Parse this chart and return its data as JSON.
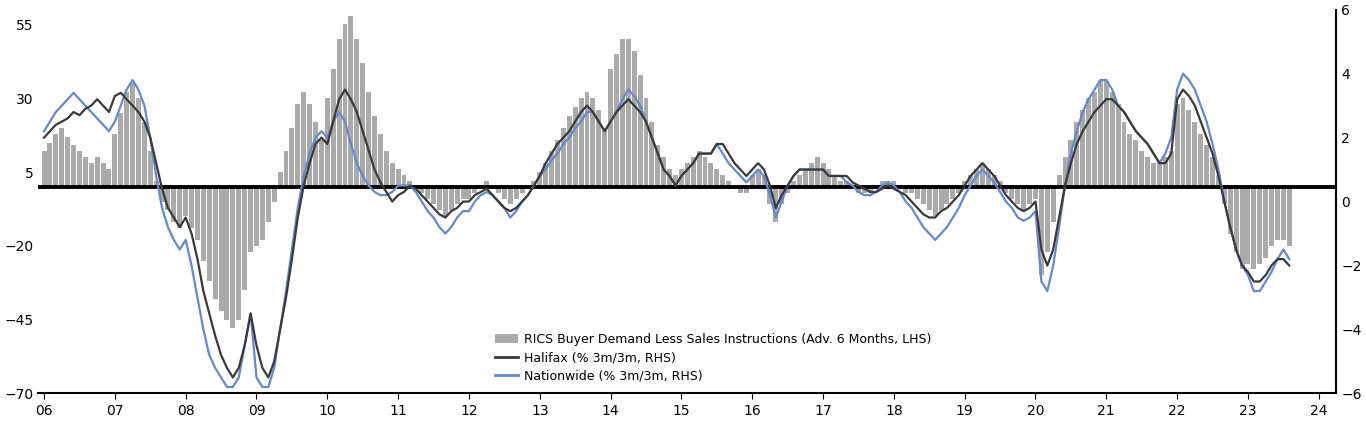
{
  "xlim": [
    2005.917,
    2024.25
  ],
  "lhs_ylim": [
    -70,
    60
  ],
  "rhs_ylim": [
    -6,
    6
  ],
  "lhs_yticks": [
    -70,
    -45,
    -20,
    5,
    30,
    55
  ],
  "rhs_yticks": [
    -6,
    -4,
    -2,
    0,
    2,
    4,
    6
  ],
  "xticks": [
    6,
    7,
    8,
    9,
    10,
    11,
    12,
    13,
    14,
    15,
    16,
    17,
    18,
    19,
    20,
    21,
    22,
    23,
    24
  ],
  "bar_color": "#aaaaaa",
  "halifax_color": "#3a3a3a",
  "nationwide_color": "#6688cc",
  "legend_labels": [
    "RICS Buyer Demand Less Sales Instructions (Adv. 6 Months, LHS)",
    "Halifax (% 3m/3m, RHS)",
    "Nationwide (% 3m/3m, RHS)"
  ],
  "rics_dates": [
    2006.0,
    2006.083,
    2006.167,
    2006.25,
    2006.333,
    2006.417,
    2006.5,
    2006.583,
    2006.667,
    2006.75,
    2006.833,
    2006.917,
    2007.0,
    2007.083,
    2007.167,
    2007.25,
    2007.333,
    2007.417,
    2007.5,
    2007.583,
    2007.667,
    2007.75,
    2007.833,
    2007.917,
    2008.0,
    2008.083,
    2008.167,
    2008.25,
    2008.333,
    2008.417,
    2008.5,
    2008.583,
    2008.667,
    2008.75,
    2008.833,
    2008.917,
    2009.0,
    2009.083,
    2009.167,
    2009.25,
    2009.333,
    2009.417,
    2009.5,
    2009.583,
    2009.667,
    2009.75,
    2009.833,
    2009.917,
    2010.0,
    2010.083,
    2010.167,
    2010.25,
    2010.333,
    2010.417,
    2010.5,
    2010.583,
    2010.667,
    2010.75,
    2010.833,
    2010.917,
    2011.0,
    2011.083,
    2011.167,
    2011.25,
    2011.333,
    2011.417,
    2011.5,
    2011.583,
    2011.667,
    2011.75,
    2011.833,
    2011.917,
    2012.0,
    2012.083,
    2012.167,
    2012.25,
    2012.333,
    2012.417,
    2012.5,
    2012.583,
    2012.667,
    2012.75,
    2012.833,
    2012.917,
    2013.0,
    2013.083,
    2013.167,
    2013.25,
    2013.333,
    2013.417,
    2013.5,
    2013.583,
    2013.667,
    2013.75,
    2013.833,
    2013.917,
    2014.0,
    2014.083,
    2014.167,
    2014.25,
    2014.333,
    2014.417,
    2014.5,
    2014.583,
    2014.667,
    2014.75,
    2014.833,
    2014.917,
    2015.0,
    2015.083,
    2015.167,
    2015.25,
    2015.333,
    2015.417,
    2015.5,
    2015.583,
    2015.667,
    2015.75,
    2015.833,
    2015.917,
    2016.0,
    2016.083,
    2016.167,
    2016.25,
    2016.333,
    2016.417,
    2016.5,
    2016.583,
    2016.667,
    2016.75,
    2016.833,
    2016.917,
    2017.0,
    2017.083,
    2017.167,
    2017.25,
    2017.333,
    2017.417,
    2017.5,
    2017.583,
    2017.667,
    2017.75,
    2017.833,
    2017.917,
    2018.0,
    2018.083,
    2018.167,
    2018.25,
    2018.333,
    2018.417,
    2018.5,
    2018.583,
    2018.667,
    2018.75,
    2018.833,
    2018.917,
    2019.0,
    2019.083,
    2019.167,
    2019.25,
    2019.333,
    2019.417,
    2019.5,
    2019.583,
    2019.667,
    2019.75,
    2019.833,
    2019.917,
    2020.0,
    2020.083,
    2020.167,
    2020.25,
    2020.333,
    2020.417,
    2020.5,
    2020.583,
    2020.667,
    2020.75,
    2020.833,
    2020.917,
    2021.0,
    2021.083,
    2021.167,
    2021.25,
    2021.333,
    2021.417,
    2021.5,
    2021.583,
    2021.667,
    2021.75,
    2021.833,
    2021.917,
    2022.0,
    2022.083,
    2022.167,
    2022.25,
    2022.333,
    2022.417,
    2022.5,
    2022.583,
    2022.667,
    2022.75,
    2022.833,
    2022.917,
    2023.0,
    2023.083,
    2023.167,
    2023.25,
    2023.333,
    2023.417,
    2023.5,
    2023.583
  ],
  "rics_vals": [
    12,
    15,
    18,
    20,
    17,
    14,
    12,
    10,
    8,
    10,
    8,
    6,
    18,
    25,
    32,
    35,
    30,
    22,
    12,
    2,
    -5,
    -8,
    -12,
    -14,
    -10,
    -14,
    -18,
    -25,
    -32,
    -38,
    -42,
    -45,
    -48,
    -45,
    -35,
    -22,
    -20,
    -18,
    -12,
    -5,
    5,
    12,
    20,
    28,
    32,
    28,
    22,
    16,
    30,
    40,
    50,
    55,
    58,
    50,
    42,
    32,
    24,
    18,
    12,
    8,
    6,
    4,
    2,
    0,
    -2,
    -4,
    -6,
    -8,
    -10,
    -8,
    -6,
    -4,
    -4,
    -2,
    0,
    2,
    0,
    -2,
    -4,
    -6,
    -4,
    -2,
    0,
    2,
    5,
    8,
    12,
    16,
    20,
    24,
    27,
    30,
    32,
    30,
    26,
    20,
    40,
    45,
    50,
    50,
    46,
    38,
    30,
    22,
    14,
    10,
    6,
    4,
    6,
    8,
    10,
    12,
    10,
    8,
    6,
    4,
    2,
    0,
    -2,
    -2,
    4,
    6,
    4,
    -6,
    -12,
    -6,
    -2,
    2,
    4,
    6,
    8,
    10,
    8,
    6,
    4,
    2,
    2,
    0,
    -2,
    -2,
    -2,
    0,
    2,
    2,
    2,
    0,
    -2,
    -2,
    -4,
    -6,
    -8,
    -10,
    -8,
    -6,
    -4,
    -2,
    2,
    4,
    6,
    8,
    6,
    4,
    2,
    -2,
    -4,
    -6,
    -8,
    -6,
    -4,
    -30,
    -22,
    -12,
    4,
    10,
    16,
    22,
    26,
    30,
    32,
    36,
    36,
    32,
    28,
    22,
    18,
    16,
    12,
    10,
    8,
    8,
    10,
    12,
    28,
    30,
    26,
    22,
    18,
    14,
    10,
    4,
    -6,
    -16,
    -22,
    -28,
    -26,
    -28,
    -26,
    -24,
    -20,
    -18,
    -18,
    -20
  ],
  "halifax_dates": [
    2006.0,
    2006.083,
    2006.167,
    2006.25,
    2006.333,
    2006.417,
    2006.5,
    2006.583,
    2006.667,
    2006.75,
    2006.833,
    2006.917,
    2007.0,
    2007.083,
    2007.167,
    2007.25,
    2007.333,
    2007.417,
    2007.5,
    2007.583,
    2007.667,
    2007.75,
    2007.833,
    2007.917,
    2008.0,
    2008.083,
    2008.167,
    2008.25,
    2008.333,
    2008.417,
    2008.5,
    2008.583,
    2008.667,
    2008.75,
    2008.833,
    2008.917,
    2009.0,
    2009.083,
    2009.167,
    2009.25,
    2009.333,
    2009.417,
    2009.5,
    2009.583,
    2009.667,
    2009.75,
    2009.833,
    2009.917,
    2010.0,
    2010.083,
    2010.167,
    2010.25,
    2010.333,
    2010.417,
    2010.5,
    2010.583,
    2010.667,
    2010.75,
    2010.833,
    2010.917,
    2011.0,
    2011.083,
    2011.167,
    2011.25,
    2011.333,
    2011.417,
    2011.5,
    2011.583,
    2011.667,
    2011.75,
    2011.833,
    2011.917,
    2012.0,
    2012.083,
    2012.167,
    2012.25,
    2012.333,
    2012.417,
    2012.5,
    2012.583,
    2012.667,
    2012.75,
    2012.833,
    2012.917,
    2013.0,
    2013.083,
    2013.167,
    2013.25,
    2013.333,
    2013.417,
    2013.5,
    2013.583,
    2013.667,
    2013.75,
    2013.833,
    2013.917,
    2014.0,
    2014.083,
    2014.167,
    2014.25,
    2014.333,
    2014.417,
    2014.5,
    2014.583,
    2014.667,
    2014.75,
    2014.833,
    2014.917,
    2015.0,
    2015.083,
    2015.167,
    2015.25,
    2015.333,
    2015.417,
    2015.5,
    2015.583,
    2015.667,
    2015.75,
    2015.833,
    2015.917,
    2016.0,
    2016.083,
    2016.167,
    2016.25,
    2016.333,
    2016.417,
    2016.5,
    2016.583,
    2016.667,
    2016.75,
    2016.833,
    2016.917,
    2017.0,
    2017.083,
    2017.167,
    2017.25,
    2017.333,
    2017.417,
    2017.5,
    2017.583,
    2017.667,
    2017.75,
    2017.833,
    2017.917,
    2018.0,
    2018.083,
    2018.167,
    2018.25,
    2018.333,
    2018.417,
    2018.5,
    2018.583,
    2018.667,
    2018.75,
    2018.833,
    2018.917,
    2019.0,
    2019.083,
    2019.167,
    2019.25,
    2019.333,
    2019.417,
    2019.5,
    2019.583,
    2019.667,
    2019.75,
    2019.833,
    2019.917,
    2020.0,
    2020.083,
    2020.167,
    2020.25,
    2020.333,
    2020.417,
    2020.5,
    2020.583,
    2020.667,
    2020.75,
    2020.833,
    2020.917,
    2021.0,
    2021.083,
    2021.167,
    2021.25,
    2021.333,
    2021.417,
    2021.5,
    2021.583,
    2021.667,
    2021.75,
    2021.833,
    2021.917,
    2022.0,
    2022.083,
    2022.167,
    2022.25,
    2022.333,
    2022.417,
    2022.5,
    2022.583,
    2022.667,
    2022.75,
    2022.833,
    2022.917,
    2023.0,
    2023.083,
    2023.167,
    2023.25,
    2023.333,
    2023.417,
    2023.5,
    2023.583
  ],
  "halifax_vals": [
    2.0,
    2.2,
    2.4,
    2.5,
    2.6,
    2.8,
    2.7,
    2.9,
    3.0,
    3.2,
    3.0,
    2.8,
    3.3,
    3.4,
    3.2,
    3.0,
    2.8,
    2.5,
    2.0,
    1.2,
    0.4,
    -0.2,
    -0.5,
    -0.8,
    -0.5,
    -1.0,
    -1.8,
    -2.8,
    -3.5,
    -4.2,
    -4.8,
    -5.2,
    -5.5,
    -5.2,
    -4.5,
    -3.5,
    -4.5,
    -5.2,
    -5.5,
    -5.0,
    -4.0,
    -3.0,
    -1.8,
    -0.5,
    0.5,
    1.2,
    1.8,
    2.0,
    1.8,
    2.5,
    3.2,
    3.5,
    3.2,
    2.8,
    2.2,
    1.6,
    1.0,
    0.6,
    0.3,
    0.0,
    0.2,
    0.3,
    0.5,
    0.4,
    0.2,
    0.0,
    -0.2,
    -0.4,
    -0.5,
    -0.3,
    -0.2,
    0.0,
    0.0,
    0.2,
    0.3,
    0.4,
    0.2,
    0.0,
    -0.2,
    -0.3,
    -0.2,
    0.0,
    0.2,
    0.5,
    0.8,
    1.2,
    1.5,
    1.8,
    2.0,
    2.2,
    2.5,
    2.8,
    3.0,
    2.8,
    2.5,
    2.2,
    2.5,
    2.8,
    3.0,
    3.2,
    3.0,
    2.8,
    2.5,
    2.0,
    1.5,
    1.0,
    0.8,
    0.5,
    0.8,
    1.0,
    1.2,
    1.5,
    1.5,
    1.5,
    1.8,
    1.8,
    1.5,
    1.2,
    1.0,
    0.8,
    1.0,
    1.2,
    1.0,
    0.5,
    -0.2,
    0.2,
    0.5,
    0.8,
    1.0,
    1.0,
    1.0,
    1.0,
    1.0,
    0.8,
    0.8,
    0.8,
    0.8,
    0.6,
    0.5,
    0.4,
    0.3,
    0.3,
    0.4,
    0.5,
    0.4,
    0.3,
    0.2,
    0.0,
    -0.2,
    -0.4,
    -0.5,
    -0.5,
    -0.3,
    -0.2,
    0.0,
    0.2,
    0.5,
    0.8,
    1.0,
    1.2,
    1.0,
    0.8,
    0.5,
    0.2,
    0.0,
    -0.2,
    -0.3,
    -0.2,
    0.0,
    -1.5,
    -2.0,
    -1.5,
    -0.5,
    0.5,
    1.2,
    1.8,
    2.2,
    2.5,
    2.8,
    3.0,
    3.2,
    3.2,
    3.0,
    2.8,
    2.5,
    2.2,
    2.0,
    1.8,
    1.5,
    1.2,
    1.2,
    1.5,
    3.2,
    3.5,
    3.3,
    3.0,
    2.5,
    2.0,
    1.5,
    0.8,
    0.0,
    -0.8,
    -1.5,
    -2.0,
    -2.2,
    -2.5,
    -2.5,
    -2.3,
    -2.0,
    -1.8,
    -1.8,
    -2.0
  ],
  "nationwide_dates": [
    2006.0,
    2006.083,
    2006.167,
    2006.25,
    2006.333,
    2006.417,
    2006.5,
    2006.583,
    2006.667,
    2006.75,
    2006.833,
    2006.917,
    2007.0,
    2007.083,
    2007.167,
    2007.25,
    2007.333,
    2007.417,
    2007.5,
    2007.583,
    2007.667,
    2007.75,
    2007.833,
    2007.917,
    2008.0,
    2008.083,
    2008.167,
    2008.25,
    2008.333,
    2008.417,
    2008.5,
    2008.583,
    2008.667,
    2008.75,
    2008.833,
    2008.917,
    2009.0,
    2009.083,
    2009.167,
    2009.25,
    2009.333,
    2009.417,
    2009.5,
    2009.583,
    2009.667,
    2009.75,
    2009.833,
    2009.917,
    2010.0,
    2010.083,
    2010.167,
    2010.25,
    2010.333,
    2010.417,
    2010.5,
    2010.583,
    2010.667,
    2010.75,
    2010.833,
    2010.917,
    2011.0,
    2011.083,
    2011.167,
    2011.25,
    2011.333,
    2011.417,
    2011.5,
    2011.583,
    2011.667,
    2011.75,
    2011.833,
    2011.917,
    2012.0,
    2012.083,
    2012.167,
    2012.25,
    2012.333,
    2012.417,
    2012.5,
    2012.583,
    2012.667,
    2012.75,
    2012.833,
    2012.917,
    2013.0,
    2013.083,
    2013.167,
    2013.25,
    2013.333,
    2013.417,
    2013.5,
    2013.583,
    2013.667,
    2013.75,
    2013.833,
    2013.917,
    2014.0,
    2014.083,
    2014.167,
    2014.25,
    2014.333,
    2014.417,
    2014.5,
    2014.583,
    2014.667,
    2014.75,
    2014.833,
    2014.917,
    2015.0,
    2015.083,
    2015.167,
    2015.25,
    2015.333,
    2015.417,
    2015.5,
    2015.583,
    2015.667,
    2015.75,
    2015.833,
    2015.917,
    2016.0,
    2016.083,
    2016.167,
    2016.25,
    2016.333,
    2016.417,
    2016.5,
    2016.583,
    2016.667,
    2016.75,
    2016.833,
    2016.917,
    2017.0,
    2017.083,
    2017.167,
    2017.25,
    2017.333,
    2017.417,
    2017.5,
    2017.583,
    2017.667,
    2017.75,
    2017.833,
    2017.917,
    2018.0,
    2018.083,
    2018.167,
    2018.25,
    2018.333,
    2018.417,
    2018.5,
    2018.583,
    2018.667,
    2018.75,
    2018.833,
    2018.917,
    2019.0,
    2019.083,
    2019.167,
    2019.25,
    2019.333,
    2019.417,
    2019.5,
    2019.583,
    2019.667,
    2019.75,
    2019.833,
    2019.917,
    2020.0,
    2020.083,
    2020.167,
    2020.25,
    2020.333,
    2020.417,
    2020.5,
    2020.583,
    2020.667,
    2020.75,
    2020.833,
    2020.917,
    2021.0,
    2021.083,
    2021.167,
    2021.25,
    2021.333,
    2021.417,
    2021.5,
    2021.583,
    2021.667,
    2021.75,
    2021.833,
    2021.917,
    2022.0,
    2022.083,
    2022.167,
    2022.25,
    2022.333,
    2022.417,
    2022.5,
    2022.583,
    2022.667,
    2022.75,
    2022.833,
    2022.917,
    2023.0,
    2023.083,
    2023.167,
    2023.25,
    2023.333,
    2023.417,
    2023.5,
    2023.583
  ],
  "nationwide_vals": [
    2.2,
    2.5,
    2.8,
    3.0,
    3.2,
    3.4,
    3.2,
    3.0,
    2.8,
    2.6,
    2.4,
    2.2,
    2.5,
    3.0,
    3.5,
    3.8,
    3.5,
    3.0,
    2.0,
    0.8,
    -0.2,
    -0.8,
    -1.2,
    -1.5,
    -1.2,
    -2.0,
    -3.0,
    -4.0,
    -4.8,
    -5.2,
    -5.5,
    -5.8,
    -5.8,
    -5.5,
    -4.5,
    -3.5,
    -5.5,
    -5.8,
    -5.8,
    -5.2,
    -4.0,
    -2.8,
    -1.5,
    -0.2,
    0.8,
    1.5,
    2.0,
    2.2,
    2.0,
    2.5,
    2.8,
    2.5,
    1.8,
    1.2,
    0.8,
    0.5,
    0.3,
    0.2,
    0.2,
    0.3,
    0.5,
    0.5,
    0.5,
    0.3,
    0.0,
    -0.3,
    -0.5,
    -0.8,
    -1.0,
    -0.8,
    -0.5,
    -0.3,
    -0.3,
    0.0,
    0.2,
    0.3,
    0.2,
    0.0,
    -0.2,
    -0.5,
    -0.3,
    0.0,
    0.2,
    0.5,
    0.8,
    1.0,
    1.3,
    1.5,
    1.8,
    2.0,
    2.3,
    2.5,
    2.8,
    2.8,
    2.5,
    2.2,
    2.5,
    2.8,
    3.2,
    3.5,
    3.3,
    3.0,
    2.5,
    2.0,
    1.5,
    1.0,
    0.8,
    0.5,
    0.8,
    1.0,
    1.2,
    1.5,
    1.5,
    1.5,
    1.8,
    1.5,
    1.2,
    1.0,
    0.8,
    0.6,
    0.8,
    1.0,
    0.8,
    0.2,
    -0.5,
    0.0,
    0.5,
    0.8,
    1.0,
    1.0,
    1.0,
    1.0,
    1.0,
    0.8,
    0.8,
    0.8,
    0.6,
    0.5,
    0.3,
    0.2,
    0.2,
    0.3,
    0.5,
    0.6,
    0.5,
    0.3,
    0.0,
    -0.2,
    -0.5,
    -0.8,
    -1.0,
    -1.2,
    -1.0,
    -0.8,
    -0.5,
    -0.2,
    0.2,
    0.5,
    0.8,
    1.0,
    0.8,
    0.6,
    0.3,
    0.0,
    -0.2,
    -0.5,
    -0.6,
    -0.5,
    -0.3,
    -2.5,
    -2.8,
    -2.0,
    -0.8,
    0.5,
    1.5,
    2.2,
    2.8,
    3.2,
    3.5,
    3.8,
    3.8,
    3.5,
    3.0,
    2.8,
    2.5,
    2.2,
    2.0,
    1.8,
    1.5,
    1.2,
    1.5,
    2.0,
    3.5,
    4.0,
    3.8,
    3.5,
    3.0,
    2.5,
    1.8,
    1.0,
    0.0,
    -0.8,
    -1.5,
    -2.0,
    -2.3,
    -2.8,
    -2.8,
    -2.5,
    -2.2,
    -1.8,
    -1.5,
    -1.8
  ]
}
